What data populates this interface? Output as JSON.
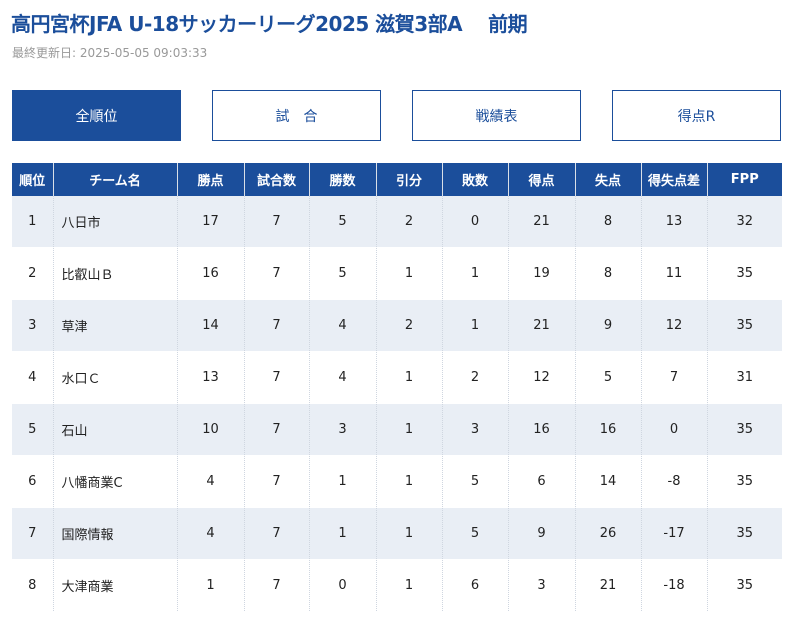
{
  "page": {
    "title": "高円宮杯JFA U-18サッカーリーグ2025 滋賀3部A　 前期",
    "updated": "最終更新日: 2025-05-05 09:03:33"
  },
  "tabs": [
    {
      "label": "全順位",
      "active": true
    },
    {
      "label": "試　合",
      "active": false
    },
    {
      "label": "戦績表",
      "active": false
    },
    {
      "label": "得点R",
      "active": false
    }
  ],
  "table": {
    "headers": [
      "順位",
      "チーム名",
      "勝点",
      "試合数",
      "勝数",
      "引分",
      "敗数",
      "得点",
      "失点",
      "得失点差",
      "FPP"
    ],
    "rows": [
      [
        "1",
        "八日市",
        "17",
        "7",
        "5",
        "2",
        "0",
        "21",
        "8",
        "13",
        "32"
      ],
      [
        "2",
        "比叡山Ｂ",
        "16",
        "7",
        "5",
        "1",
        "1",
        "19",
        "8",
        "11",
        "35"
      ],
      [
        "3",
        "草津",
        "14",
        "7",
        "4",
        "2",
        "1",
        "21",
        "9",
        "12",
        "35"
      ],
      [
        "4",
        "水口Ｃ",
        "13",
        "7",
        "4",
        "1",
        "2",
        "12",
        "5",
        "7",
        "31"
      ],
      [
        "5",
        "石山",
        "10",
        "7",
        "3",
        "1",
        "3",
        "16",
        "16",
        "0",
        "35"
      ],
      [
        "6",
        "八幡商業C",
        "4",
        "7",
        "1",
        "1",
        "5",
        "6",
        "14",
        "-8",
        "35"
      ],
      [
        "7",
        "国際情報",
        "4",
        "7",
        "1",
        "1",
        "5",
        "9",
        "26",
        "-17",
        "35"
      ],
      [
        "8",
        "大津商業",
        "1",
        "7",
        "0",
        "1",
        "6",
        "3",
        "21",
        "-18",
        "35"
      ]
    ]
  }
}
